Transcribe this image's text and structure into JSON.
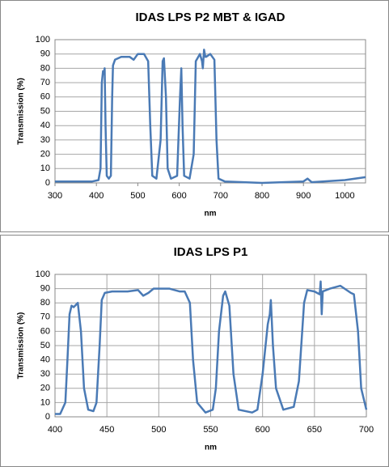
{
  "chart_data": [
    {
      "type": "line",
      "title": "IDAS LPS P2 MBT & IGAD",
      "xlabel": "nm",
      "ylabel": "Transmission (%)",
      "xlim": [
        300,
        1050
      ],
      "xticks": [
        300,
        400,
        500,
        600,
        700,
        800,
        900,
        1000
      ],
      "ylim": [
        0,
        100
      ],
      "yticks": [
        0,
        10,
        20,
        30,
        40,
        50,
        60,
        70,
        80,
        90,
        100
      ],
      "grid": "y",
      "series": [
        {
          "color": "#4a7ab5",
          "x": [
            300,
            350,
            390,
            405,
            410,
            413,
            416,
            418,
            420,
            422,
            425,
            430,
            435,
            438,
            440,
            445,
            460,
            480,
            490,
            500,
            515,
            525,
            530,
            535,
            545,
            555,
            560,
            563,
            568,
            572,
            580,
            595,
            602,
            605,
            608,
            612,
            625,
            635,
            640,
            650,
            655,
            657,
            660,
            663,
            665,
            675,
            685,
            690,
            695,
            710,
            800,
            900,
            910,
            920,
            1000,
            1050
          ],
          "values": [
            1,
            1,
            1,
            2,
            10,
            70,
            78,
            76,
            80,
            40,
            5,
            3,
            5,
            60,
            82,
            86,
            88,
            88,
            86,
            90,
            90,
            85,
            40,
            5,
            3,
            30,
            85,
            87,
            60,
            10,
            3,
            5,
            60,
            80,
            40,
            5,
            3,
            20,
            85,
            90,
            85,
            80,
            93,
            88,
            88,
            90,
            86,
            30,
            3,
            1,
            0,
            1,
            3,
            0.5,
            2,
            4
          ]
        }
      ]
    },
    {
      "type": "line",
      "title": "IDAS LPS P1",
      "xlabel": "nm",
      "ylabel": "Transmission (%)",
      "xlim": [
        400,
        700
      ],
      "xticks": [
        400,
        450,
        500,
        550,
        600,
        650,
        700
      ],
      "ylim": [
        0,
        100
      ],
      "yticks": [
        0,
        10,
        20,
        30,
        40,
        50,
        60,
        70,
        80,
        90,
        100
      ],
      "grid": "both",
      "series": [
        {
          "color": "#4a7ab5",
          "x": [
            400,
            405,
            410,
            412,
            414,
            416,
            418,
            422,
            425,
            428,
            432,
            437,
            440,
            443,
            445,
            448,
            455,
            470,
            480,
            485,
            490,
            495,
            510,
            520,
            525,
            530,
            533,
            537,
            545,
            552,
            555,
            558,
            562,
            564,
            568,
            572,
            577,
            590,
            595,
            600,
            605,
            607,
            608,
            610,
            613,
            620,
            630,
            635,
            640,
            643,
            650,
            655,
            656,
            657,
            658,
            665,
            675,
            685,
            688,
            692,
            695,
            700
          ],
          "values": [
            2,
            2,
            10,
            40,
            72,
            78,
            77,
            80,
            60,
            20,
            5,
            4,
            10,
            50,
            82,
            87,
            88,
            88,
            89,
            85,
            87,
            90,
            90,
            88,
            88,
            80,
            40,
            10,
            3,
            5,
            20,
            60,
            85,
            88,
            78,
            30,
            5,
            3,
            5,
            30,
            65,
            72,
            82,
            50,
            20,
            5,
            7,
            25,
            80,
            89,
            88,
            86,
            95,
            72,
            88,
            90,
            92,
            87,
            86,
            60,
            20,
            5
          ]
        }
      ]
    }
  ]
}
